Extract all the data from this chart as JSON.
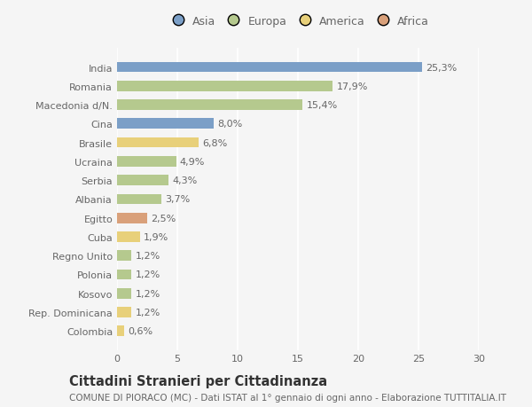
{
  "categories": [
    "India",
    "Romania",
    "Macedonia d/N.",
    "Cina",
    "Brasile",
    "Ucraina",
    "Serbia",
    "Albania",
    "Egitto",
    "Cuba",
    "Regno Unito",
    "Polonia",
    "Kosovo",
    "Rep. Dominicana",
    "Colombia"
  ],
  "values": [
    25.3,
    17.9,
    15.4,
    8.0,
    6.8,
    4.9,
    4.3,
    3.7,
    2.5,
    1.9,
    1.2,
    1.2,
    1.2,
    1.2,
    0.6
  ],
  "labels": [
    "25,3%",
    "17,9%",
    "15,4%",
    "8,0%",
    "6,8%",
    "4,9%",
    "4,3%",
    "3,7%",
    "2,5%",
    "1,9%",
    "1,2%",
    "1,2%",
    "1,2%",
    "1,2%",
    "0,6%"
  ],
  "colors": [
    "#7b9fc7",
    "#b5c98e",
    "#b5c98e",
    "#7b9fc7",
    "#e8d07a",
    "#b5c98e",
    "#b5c98e",
    "#b5c98e",
    "#d9a07a",
    "#e8d07a",
    "#b5c98e",
    "#b5c98e",
    "#b5c98e",
    "#e8d07a",
    "#e8d07a"
  ],
  "continent_labels": [
    "Asia",
    "Europa",
    "America",
    "Africa"
  ],
  "continent_colors": [
    "#7b9fc7",
    "#b5c98e",
    "#e8d07a",
    "#d9a07a"
  ],
  "xlim": [
    0,
    30
  ],
  "xticks": [
    0,
    5,
    10,
    15,
    20,
    25,
    30
  ],
  "title": "Cittadini Stranieri per Cittadinanza",
  "subtitle": "COMUNE DI PIORACO (MC) - Dati ISTAT al 1° gennaio di ogni anno - Elaborazione TUTTITALIA.IT",
  "background_color": "#f5f5f5",
  "bar_height": 0.55,
  "label_fontsize": 8,
  "ytick_fontsize": 8,
  "xtick_fontsize": 8,
  "title_fontsize": 10.5,
  "subtitle_fontsize": 7.5
}
